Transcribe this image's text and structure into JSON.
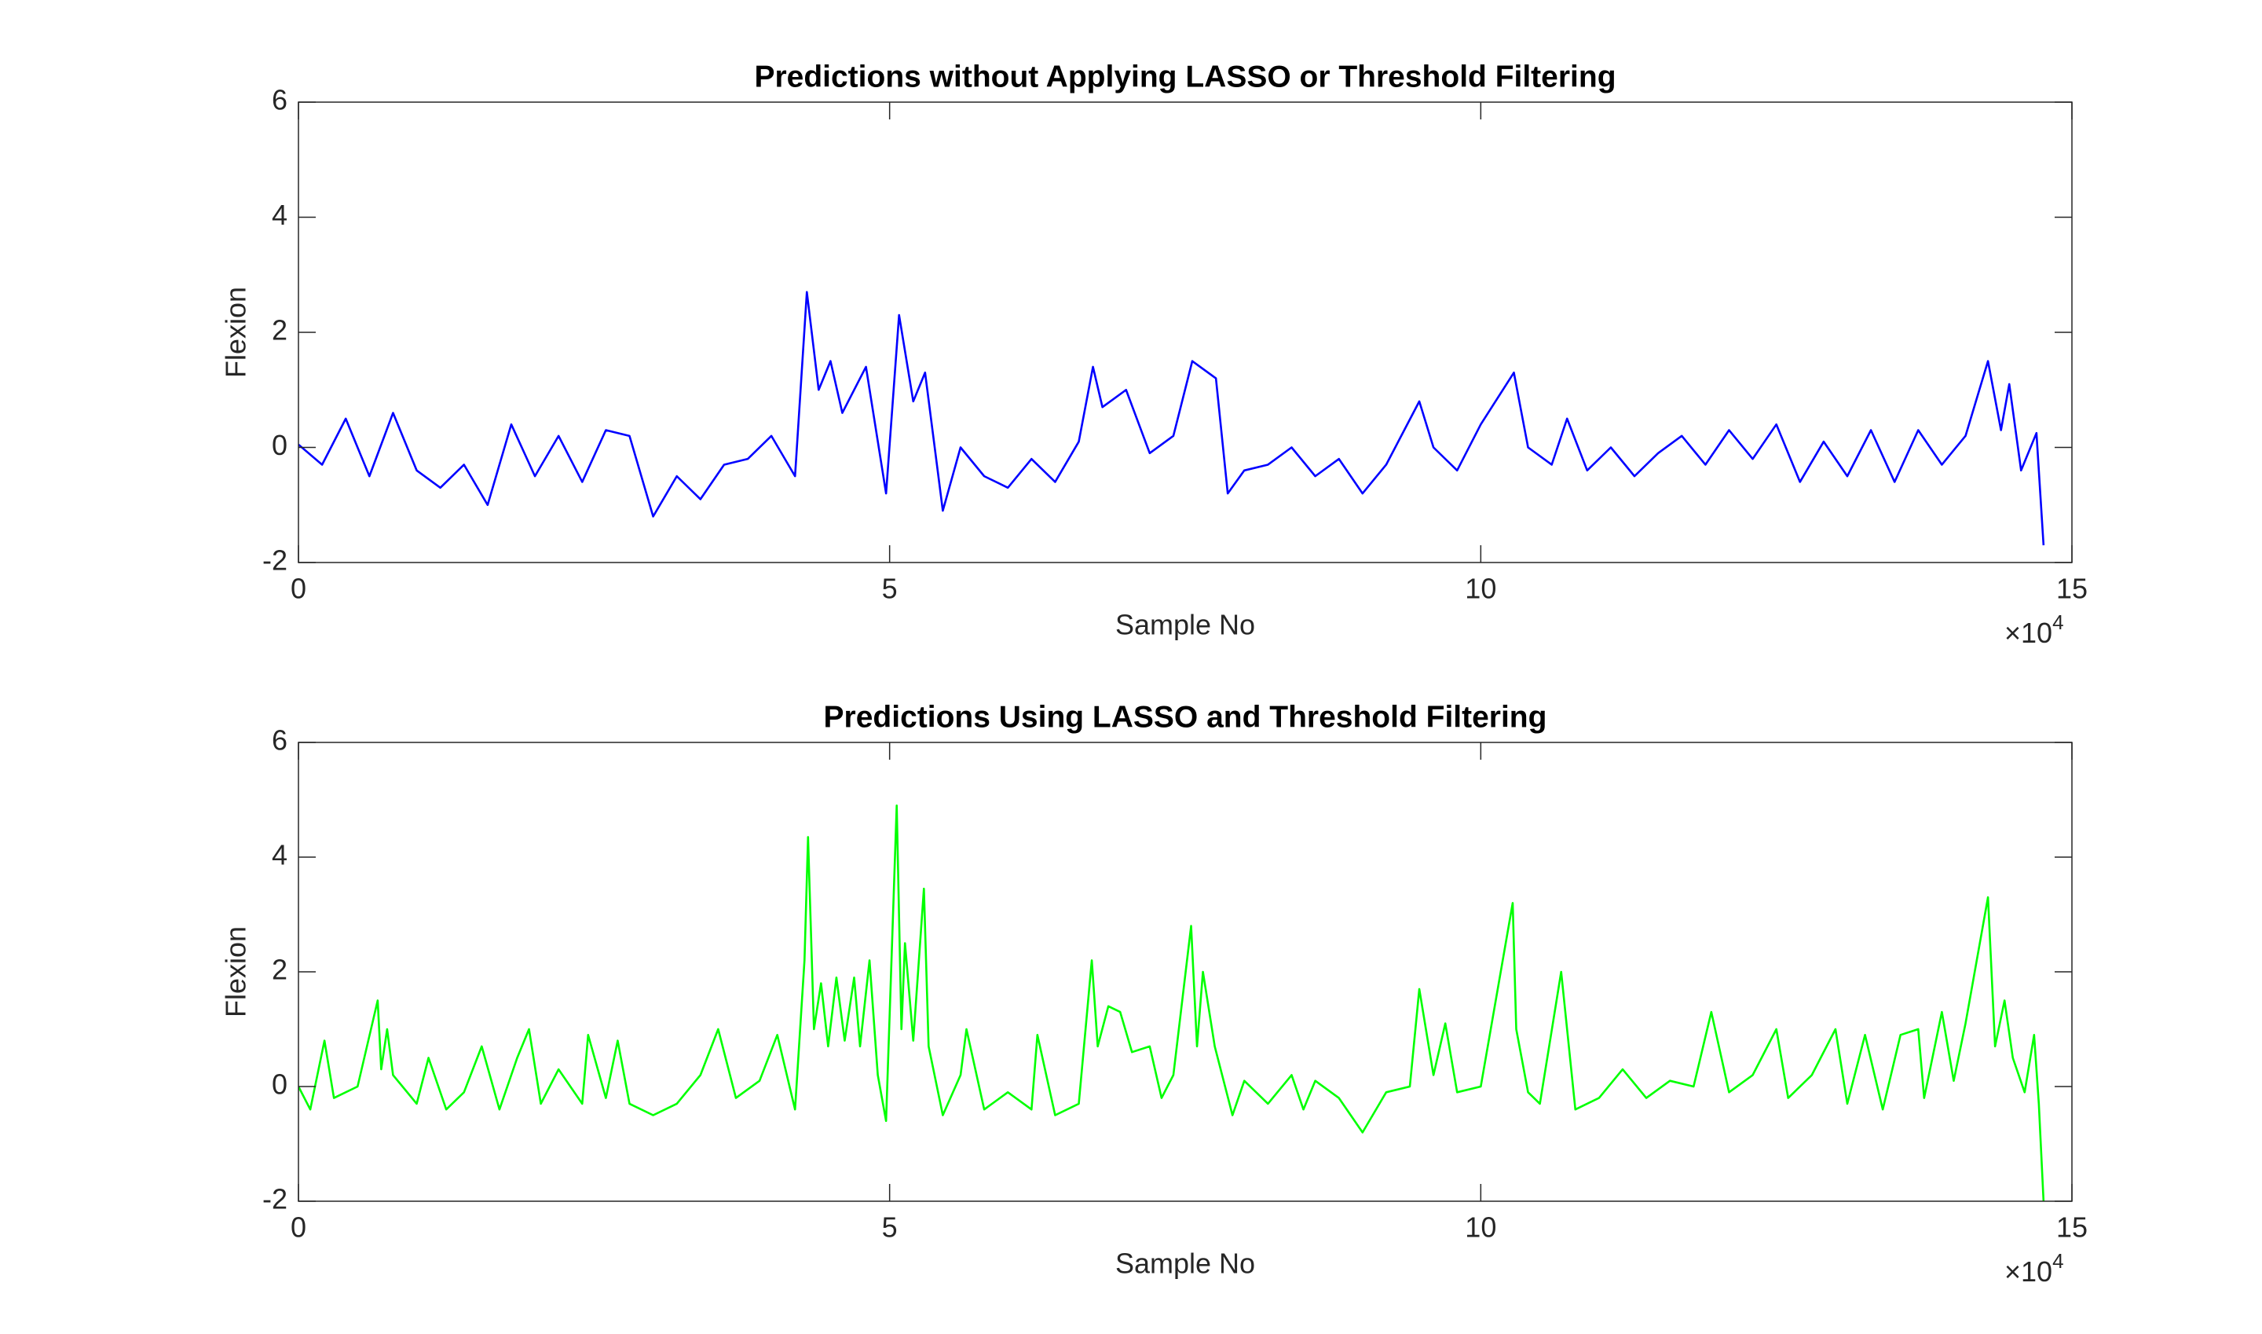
{
  "chart_data": [
    {
      "type": "line",
      "title": "Predictions without Applying LASSO or Threshold Filtering",
      "xlabel": "Sample No",
      "ylabel": "Flexion",
      "x_multiplier": "×10",
      "x_multiplier_power": "4",
      "color": "#0000ff",
      "xlim": [
        0,
        150000
      ],
      "xticks": [
        0,
        {
          "value": 50000,
          "label": "5"
        },
        {
          "value": 100000,
          "label": "10"
        },
        {
          "value": 150000,
          "label": "15"
        }
      ],
      "ylim": [
        -2,
        6
      ],
      "yticks": [
        -2,
        0,
        2,
        4,
        6
      ],
      "x": [
        0,
        2000,
        4000,
        6000,
        8000,
        10000,
        12000,
        14000,
        16000,
        18000,
        20000,
        22000,
        24000,
        26000,
        28000,
        30000,
        32000,
        34000,
        36000,
        38000,
        40000,
        42000,
        43000,
        44000,
        45000,
        46000,
        48000,
        49700,
        50800,
        52000,
        53000,
        54500,
        56000,
        58000,
        60000,
        62000,
        64000,
        66000,
        67200,
        68000,
        70000,
        72000,
        74000,
        75600,
        77600,
        78600,
        80000,
        82000,
        84000,
        86000,
        88000,
        90000,
        92000,
        94800,
        96000,
        98000,
        100000,
        102800,
        104000,
        106000,
        107300,
        109000,
        111000,
        113000,
        115000,
        117000,
        119000,
        121000,
        123000,
        125000,
        127000,
        129000,
        131000,
        133000,
        135000,
        137000,
        139000,
        141000,
        142900,
        144000,
        144700,
        145700,
        147000,
        147600
      ],
      "values": [
        0.05,
        -0.3,
        0.5,
        -0.5,
        0.6,
        -0.4,
        -0.7,
        -0.3,
        -1.0,
        0.4,
        -0.5,
        0.2,
        -0.6,
        0.3,
        0.2,
        -1.2,
        -0.5,
        -0.9,
        -0.3,
        -0.2,
        0.2,
        -0.5,
        2.7,
        1.0,
        1.5,
        0.6,
        1.4,
        -0.8,
        2.3,
        0.8,
        1.3,
        -1.1,
        0.0,
        -0.5,
        -0.7,
        -0.2,
        -0.6,
        0.1,
        1.4,
        0.7,
        1.0,
        -0.1,
        0.2,
        1.5,
        1.2,
        -0.8,
        -0.4,
        -0.3,
        0.0,
        -0.5,
        -0.2,
        -0.8,
        -0.3,
        0.8,
        0.0,
        -0.4,
        0.4,
        1.3,
        0.0,
        -0.3,
        0.5,
        -0.4,
        0.0,
        -0.5,
        -0.1,
        0.2,
        -0.3,
        0.3,
        -0.2,
        0.4,
        -0.6,
        0.1,
        -0.5,
        0.3,
        -0.6,
        0.3,
        -0.3,
        0.2,
        1.5,
        0.3,
        1.1,
        -0.4,
        0.25,
        -1.7
      ]
    },
    {
      "type": "line",
      "title": "Predictions Using LASSO and Threshold Filtering",
      "xlabel": "Sample No",
      "ylabel": "Flexion",
      "x_multiplier": "×10",
      "x_multiplier_power": "4",
      "color": "#00ff00",
      "xlim": [
        0,
        150000
      ],
      "xticks": [
        0,
        {
          "value": 50000,
          "label": "5"
        },
        {
          "value": 100000,
          "label": "10"
        },
        {
          "value": 150000,
          "label": "15"
        }
      ],
      "ylim": [
        -2,
        6
      ],
      "yticks": [
        -2,
        0,
        2,
        4,
        6
      ],
      "x": [
        0,
        1000,
        2200,
        3000,
        5000,
        6700,
        7000,
        7500,
        8000,
        10000,
        11000,
        12500,
        14000,
        15500,
        17000,
        18500,
        19500,
        20500,
        22000,
        24000,
        24500,
        26000,
        27000,
        28000,
        30000,
        32000,
        34000,
        35500,
        37000,
        39000,
        40500,
        42000,
        42800,
        43100,
        43600,
        44200,
        44800,
        45500,
        46200,
        47000,
        47500,
        48300,
        49000,
        49700,
        50600,
        51000,
        51300,
        52000,
        52900,
        53300,
        54500,
        56000,
        56500,
        58000,
        60000,
        62000,
        62500,
        64000,
        66000,
        67100,
        67600,
        68500,
        69500,
        70500,
        72000,
        73000,
        74000,
        75500,
        76000,
        76500,
        77500,
        79000,
        80000,
        82000,
        84000,
        85000,
        86000,
        88000,
        90000,
        92000,
        94000,
        94800,
        96000,
        97000,
        98000,
        100000,
        102700,
        103000,
        104000,
        105000,
        106800,
        108000,
        110000,
        112000,
        114000,
        116000,
        118000,
        119500,
        121000,
        123000,
        125000,
        126000,
        128000,
        130000,
        131000,
        132500,
        134000,
        135500,
        137000,
        137500,
        139000,
        140000,
        141000,
        142900,
        143500,
        144300,
        145000,
        146000,
        146800,
        147200,
        147600
      ],
      "values": [
        0,
        -0.4,
        0.8,
        -0.2,
        0,
        1.5,
        0.3,
        1.0,
        0.2,
        -0.3,
        0.5,
        -0.4,
        -0.1,
        0.7,
        -0.4,
        0.5,
        1.0,
        -0.3,
        0.3,
        -0.3,
        0.9,
        -0.2,
        0.8,
        -0.3,
        -0.5,
        -0.3,
        0.2,
        1.0,
        -0.2,
        0.1,
        0.9,
        -0.4,
        2.2,
        4.35,
        1.0,
        1.8,
        0.7,
        1.9,
        0.8,
        1.9,
        0.7,
        2.2,
        0.2,
        -0.6,
        4.9,
        1.0,
        2.5,
        0.8,
        3.45,
        0.7,
        -0.5,
        0.2,
        1.0,
        -0.4,
        -0.1,
        -0.4,
        0.9,
        -0.5,
        -0.3,
        2.2,
        0.7,
        1.4,
        1.3,
        0.6,
        0.7,
        -0.2,
        0.2,
        2.8,
        0.7,
        2.0,
        0.7,
        -0.5,
        0.1,
        -0.3,
        0.2,
        -0.4,
        0.1,
        -0.2,
        -0.8,
        -0.1,
        0.0,
        1.7,
        0.2,
        1.1,
        -0.1,
        0.0,
        3.2,
        1.0,
        -0.1,
        -0.3,
        2.0,
        -0.4,
        -0.2,
        0.3,
        -0.2,
        0.1,
        0.0,
        1.3,
        -0.1,
        0.2,
        1.0,
        -0.2,
        0.2,
        1.0,
        -0.3,
        0.9,
        -0.4,
        0.9,
        1.0,
        -0.2,
        1.3,
        0.1,
        1.1,
        3.3,
        0.7,
        1.5,
        0.5,
        -0.1,
        0.9,
        -0.3,
        -2.0
      ]
    }
  ]
}
